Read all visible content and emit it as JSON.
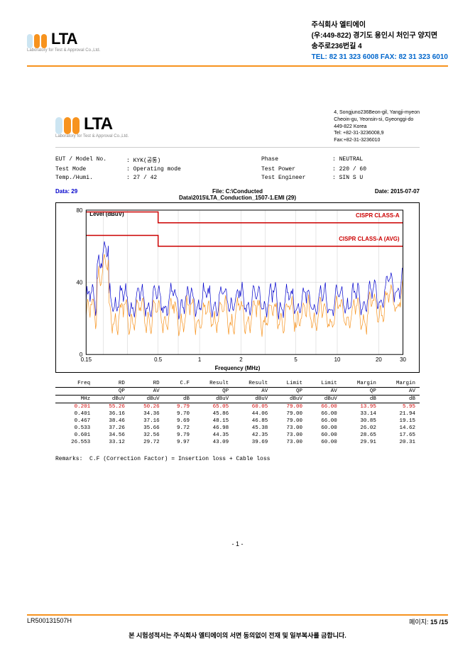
{
  "company": {
    "name_kr": "주식회사 엘티에이",
    "addr1": "(우:449-822) 경기도 용인시 처인구 양지면",
    "addr2": "송주로236번길 4",
    "tel": "TEL: 82 31 323 6008 FAX: 82 31 323 6010",
    "logo_text": "LTA",
    "logo_sub": "Laboratory for Test & Approval Co.,Ltd.",
    "pill_colors": [
      "#cce5f2",
      "#f7931e",
      "#f7931e"
    ]
  },
  "inner_addr": {
    "l1": "4, Songjuno236Beon-gil, Yangji-myeon",
    "l2": "Cheoin-gu, Yeonsin-si, Gyeonggi-do",
    "l3": "449-822 Korea",
    "l4": "Tel: +82-31-3236008,9",
    "l5": "Fax:+82-31-3236010"
  },
  "meta": {
    "eut_lbl": "EUT / Model No.",
    "eut_val": "KYK(공통)",
    "phase_lbl": "Phase",
    "phase_val": "NEUTRAL",
    "mode_lbl": "Test Mode",
    "mode_val": "Operating mode",
    "power_lbl": "Test Power",
    "power_val": "220 / 60",
    "temp_lbl": "Temp./Humi.",
    "temp_val": "27 / 42",
    "eng_lbl": "Test Engineer",
    "eng_val": "SIN S U"
  },
  "chart": {
    "data_lbl": "Data:",
    "data_val": "29",
    "file": "File: C:\\Conducted Data\\2015\\LTA_Conduction_1507-1.EMI (29)",
    "date_lbl": "Date:",
    "date_val": "2015-07-07",
    "ylabel": "Level (dBuV)",
    "xlabel": "Frequency (MHz)",
    "limit_a": "CISPR CLASS-A",
    "limit_avg": "CISPR CLASS-A (AVG)",
    "ylim": [
      0,
      80
    ],
    "yticks": [
      0,
      40,
      80
    ],
    "xlim": [
      0.15,
      30
    ],
    "xticks": [
      "0.15",
      "0.5",
      "1",
      "2",
      "5",
      "10",
      "20",
      "30"
    ],
    "limit_color": "#cc0000",
    "qp_color": "#0000cc",
    "avg_color": "#f7931e",
    "grid_color": "#cccccc",
    "bg": "#ffffff"
  },
  "table": {
    "headers1": [
      "Freq",
      "RD",
      "RD",
      "C.F",
      "Result",
      "Result",
      "Limit",
      "Limit",
      "Margin",
      "Margin"
    ],
    "headers2": [
      "",
      "QP",
      "AV",
      "",
      "QP",
      "AV",
      "QP",
      "AV",
      "QP",
      "AV"
    ],
    "headers3": [
      "MHz",
      "dBuV",
      "dBuV",
      "dB",
      "dBuV",
      "dBuV",
      "dBuV",
      "dBuV",
      "dB",
      "dB"
    ],
    "rows": [
      {
        "hl": true,
        "c": [
          "0.201",
          "55.26",
          "50.26",
          "9.79",
          "65.05",
          "60.05",
          "79.00",
          "66.00",
          "13.95",
          "5.95"
        ]
      },
      {
        "hl": false,
        "c": [
          "0.401",
          "36.16",
          "34.36",
          "9.70",
          "45.86",
          "44.06",
          "79.00",
          "66.00",
          "33.14",
          "21.94"
        ]
      },
      {
        "hl": false,
        "c": [
          "0.467",
          "38.46",
          "37.16",
          "9.69",
          "48.15",
          "46.85",
          "79.00",
          "66.00",
          "30.85",
          "19.15"
        ]
      },
      {
        "hl": false,
        "c": [
          "0.533",
          "37.26",
          "35.66",
          "9.72",
          "46.98",
          "45.38",
          "73.00",
          "60.00",
          "26.02",
          "14.62"
        ]
      },
      {
        "hl": false,
        "c": [
          "0.601",
          "34.56",
          "32.56",
          "9.79",
          "44.35",
          "42.35",
          "73.00",
          "60.00",
          "28.65",
          "17.65"
        ]
      },
      {
        "hl": false,
        "c": [
          "26.553",
          "33.12",
          "29.72",
          "9.97",
          "43.09",
          "39.69",
          "73.00",
          "60.00",
          "29.91",
          "20.31"
        ]
      }
    ]
  },
  "remarks_lbl": "Remarks:",
  "remarks_val": "C.F (Correction Factor) = Insertion loss + Cable loss",
  "page_num": "- 1 -",
  "footer": {
    "doc_no": "LR500131507H",
    "page_lbl": "페이지:",
    "page_val": "15 /15",
    "note": "본 시험성적서는 주식회사 엘티에이의 서면 동의없이 전재 및 일부복사를 금합니다."
  }
}
